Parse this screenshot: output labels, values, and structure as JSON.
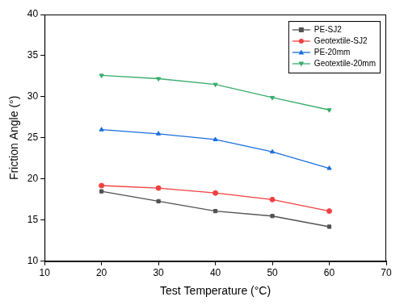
{
  "chart_data": {
    "type": "line",
    "x_label": "Test Temperature (°C)",
    "y_label": "Friction Angle (°)",
    "xlim": [
      10,
      70
    ],
    "xticks": [
      10,
      20,
      30,
      40,
      50,
      60,
      70
    ],
    "ylim": [
      10,
      40
    ],
    "yticks": [
      10,
      15,
      20,
      25,
      30,
      35,
      40
    ],
    "grid": false,
    "legend": "top-right",
    "x": [
      20,
      30,
      40,
      50,
      60
    ],
    "series": [
      {
        "name": "PE-SJ2",
        "color": "#515151",
        "marker": "square",
        "line_style": "solid",
        "values": [
          18.5,
          17.3,
          16.1,
          15.5,
          14.2
        ]
      },
      {
        "name": "Geotextile-SJ2",
        "color": "#F14040",
        "marker": "circle",
        "line_style": "solid",
        "values": [
          19.2,
          18.9,
          18.3,
          17.5,
          16.1
        ]
      },
      {
        "name": "PE-20mm",
        "color": "#1A6FDF",
        "marker": "triangle",
        "line_style": "solid",
        "values": [
          26.0,
          25.5,
          24.8,
          23.3,
          21.3
        ]
      },
      {
        "name": "Geotextile-20mm",
        "color": "#37AD6B",
        "marker": "triangle-down",
        "line_style": "solid",
        "values": [
          32.6,
          32.2,
          31.5,
          29.9,
          28.4
        ]
      }
    ]
  }
}
